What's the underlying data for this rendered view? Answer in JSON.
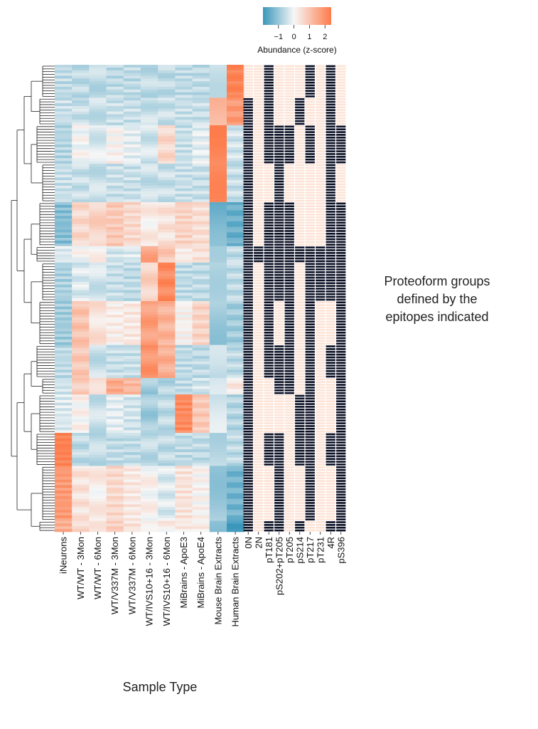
{
  "chart_data": {
    "type": "heatmap",
    "title": "",
    "xlabel": "Sample Type",
    "ylabel": "",
    "colorbar": {
      "label": "Abundance (z-score)",
      "ticks": [
        "−1",
        "0",
        "1",
        "2"
      ],
      "range": [
        -2,
        2.4
      ],
      "colors": {
        "low": "#3a97bb",
        "mid": "#f7f7f7",
        "high": "#fd7b4a"
      }
    },
    "abundance_columns": [
      "iNeurons",
      "WT/WT - 3Mon",
      "WT/WT - 6Mon",
      "WT/V337M - 3Mon",
      "WT/V337M - 6Mon",
      "WT/IVS10+16 - 3Mon",
      "WT/IVS10+16 - 6Mon",
      "MiBrains - ApoE3",
      "MiBrains - ApoE4",
      "Mouse Brain Extracts",
      "Human Brain Extracts"
    ],
    "epitope_columns": [
      "0N",
      "2N",
      "pT181",
      "pS202+pT205",
      "pT205",
      "pS214",
      "pT217",
      "pT231",
      "4R",
      "pS396"
    ],
    "epitope_tick_labels": [
      "0N",
      "2N",
      "pT181",
      "pS202+pT205",
      "pT205",
      "pS214",
      "pT217",
      "pT231",
      "4R",
      "pS396"
    ],
    "row_groups": [
      {
        "rows": 12,
        "values": [
          -0.6,
          -0.6,
          -0.6,
          -0.6,
          -0.6,
          -0.6,
          -0.6,
          -0.6,
          -0.6,
          -0.4,
          2.3
        ],
        "epitopes": [
          0,
          0,
          1,
          0,
          0,
          0,
          1,
          0,
          1,
          0
        ]
      },
      {
        "rows": 10,
        "values": [
          -0.5,
          -0.5,
          -0.5,
          -0.5,
          -0.5,
          -0.5,
          -0.5,
          -0.5,
          -0.5,
          1.2,
          1.8
        ],
        "epitopes": [
          1,
          0,
          1,
          0,
          0,
          1,
          0,
          0,
          1,
          0
        ]
      },
      {
        "rows": 14,
        "values": [
          -0.7,
          0.0,
          -0.3,
          0.1,
          -0.2,
          -0.4,
          0.6,
          -0.5,
          -0.2,
          2.1,
          -0.4
        ],
        "epitopes": [
          1,
          0,
          1,
          1,
          1,
          0,
          1,
          0,
          1,
          1
        ]
      },
      {
        "rows": 14,
        "values": [
          -0.5,
          -0.5,
          -0.5,
          -0.5,
          -0.5,
          -0.5,
          -0.5,
          -0.5,
          -0.5,
          2.0,
          -0.5
        ],
        "epitopes": [
          1,
          0,
          0,
          1,
          0,
          0,
          0,
          0,
          1,
          0
        ]
      },
      {
        "rows": 16,
        "values": [
          -1.2,
          0.6,
          0.7,
          0.9,
          0.6,
          0.2,
          0.4,
          0.7,
          0.5,
          -1.4,
          -1.5
        ],
        "epitopes": [
          1,
          0,
          1,
          1,
          1,
          0,
          0,
          0,
          1,
          1
        ]
      },
      {
        "rows": 6,
        "values": [
          -0.3,
          0.0,
          0.1,
          -0.4,
          -0.3,
          1.6,
          0.9,
          0.2,
          0.4,
          -0.6,
          -0.6
        ],
        "epitopes": [
          1,
          1,
          1,
          1,
          1,
          1,
          1,
          1,
          1,
          1
        ]
      },
      {
        "rows": 14,
        "values": [
          -0.8,
          -0.3,
          -0.4,
          -0.5,
          -0.6,
          0.7,
          2.1,
          -0.6,
          -0.6,
          -0.6,
          -0.6
        ],
        "epitopes": [
          1,
          0,
          1,
          1,
          1,
          0,
          1,
          1,
          1,
          1
        ]
      },
      {
        "rows": 16,
        "values": [
          -0.9,
          1.0,
          0.4,
          0.2,
          0.3,
          1.7,
          1.3,
          0.1,
          0.7,
          -0.9,
          -0.9
        ],
        "epitopes": [
          1,
          0,
          1,
          0,
          1,
          0,
          1,
          0,
          0,
          1
        ]
      },
      {
        "rows": 12,
        "values": [
          -0.6,
          0.9,
          -0.5,
          -0.5,
          -0.5,
          1.9,
          1.4,
          -0.6,
          -0.6,
          -0.6,
          -0.6
        ],
        "epitopes": [
          1,
          0,
          1,
          1,
          1,
          0,
          1,
          0,
          1,
          1
        ]
      },
      {
        "rows": 6,
        "values": [
          -0.4,
          0.8,
          0.6,
          1.5,
          1.2,
          -0.9,
          -0.7,
          -0.6,
          -0.4,
          -0.5,
          0.3
        ],
        "epitopes": [
          1,
          0,
          0,
          1,
          1,
          0,
          1,
          0,
          0,
          1
        ]
      },
      {
        "rows": 14,
        "values": [
          -0.3,
          0.1,
          -0.5,
          -0.2,
          -0.4,
          -0.9,
          -0.6,
          2.1,
          0.9,
          -0.4,
          -0.7
        ],
        "epitopes": [
          1,
          0,
          0,
          0,
          0,
          1,
          1,
          0,
          0,
          1
        ]
      },
      {
        "rows": 12,
        "values": [
          2.3,
          -0.6,
          -0.6,
          -0.6,
          -0.6,
          -0.6,
          -0.6,
          -0.6,
          -0.6,
          -0.6,
          -0.6
        ],
        "epitopes": [
          1,
          0,
          1,
          1,
          0,
          1,
          1,
          0,
          1,
          1
        ]
      },
      {
        "rows": 20,
        "values": [
          1.8,
          0.4,
          0.2,
          0.6,
          0.3,
          0.1,
          -0.3,
          0.4,
          0.1,
          -0.9,
          -1.4
        ],
        "epitopes": [
          1,
          0,
          0,
          1,
          0,
          0,
          1,
          0,
          0,
          1
        ]
      },
      {
        "rows": 4,
        "values": [
          1.4,
          0.6,
          0.2,
          0.8,
          0.4,
          0.3,
          0.2,
          0.3,
          0.2,
          -1.2,
          -2.0
        ],
        "epitopes": [
          1,
          0,
          1,
          1,
          0,
          1,
          0,
          0,
          1,
          1
        ]
      }
    ]
  },
  "annotation": {
    "lines": [
      "Proteoform groups",
      "defined by the",
      "epitopes indicated"
    ]
  }
}
